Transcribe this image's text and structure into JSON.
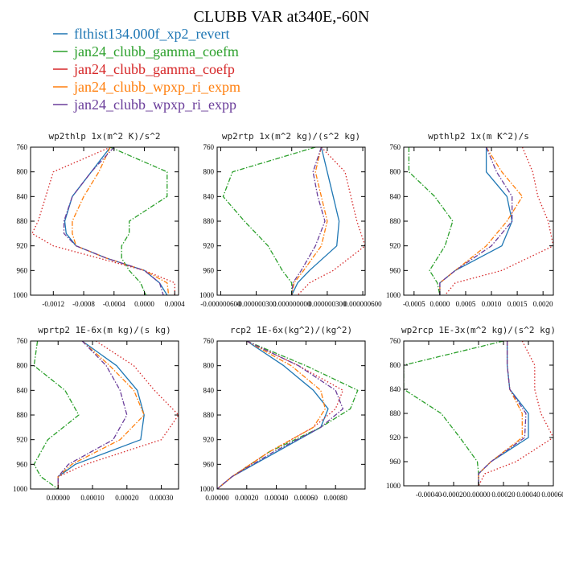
{
  "figure": {
    "title": "CLUBB VAR at340E,-60N"
  },
  "legend": [
    {
      "name": "flthist134.000f_xp2_revert",
      "color": "#1f77b4",
      "dash": "solid"
    },
    {
      "name": "jan24_clubb_gamma_coefm",
      "color": "#2ca02c",
      "dash": "dashdot"
    },
    {
      "name": "jan24_clubb_gamma_coefp",
      "color": "#d62728",
      "dash": "dot"
    },
    {
      "name": "jan24_clubb_wpxp_ri_expm",
      "color": "#ff7f0e",
      "dash": "dashdot"
    },
    {
      "name": "jan24_clubb_wpxp_ri_expp",
      "color": "#6a3d9a",
      "dash": "dashdot"
    }
  ],
  "chart_data": [
    {
      "type": "line",
      "title": "wp2thlp  1x(m^2 K)/s^2",
      "xlim": [
        -0.0015,
        0.00045
      ],
      "ylim": [
        760,
        1000
      ],
      "yticks": [
        760,
        800,
        840,
        880,
        920,
        960,
        1000
      ],
      "xticks": [
        "-0.0012",
        "-0.0008",
        "-0.0004",
        "0.0000",
        "0.0004"
      ],
      "xtick_values": [
        -0.0012,
        -0.0008,
        -0.0004,
        0.0,
        0.0004
      ],
      "y": [
        760,
        800,
        840,
        880,
        900,
        920,
        940,
        960,
        980,
        1000
      ],
      "series": [
        {
          "values": [
            -0.00045,
            -0.0007,
            -0.00095,
            -0.00105,
            -0.00103,
            -0.0009,
            -0.0005,
            0.0,
            0.0002,
            0.0003
          ]
        },
        {
          "values": [
            -0.00045,
            0.0003,
            0.0003,
            -0.0002,
            -0.0002,
            -0.0003,
            -0.0003,
            -0.0002,
            -5e-05,
            2e-05
          ]
        },
        {
          "values": [
            -0.00045,
            -0.0012,
            -0.0013,
            -0.0014,
            -0.00148,
            -0.0012,
            -0.0006,
            0.0,
            0.0004,
            0.0004
          ]
        },
        {
          "values": [
            -0.00045,
            -0.0006,
            -0.0008,
            -0.00095,
            -0.00095,
            -0.0009,
            -0.0005,
            0.0,
            0.0003,
            0.00032
          ]
        },
        {
          "values": [
            -0.0004,
            -0.0007,
            -0.00095,
            -0.00106,
            -0.00106,
            -0.0009,
            -0.0005,
            0.0,
            0.0002,
            0.00025
          ]
        }
      ]
    },
    {
      "type": "line",
      "title": "wp2rtp  1x(m^2 kg)/(s^2 kg)",
      "xlim": [
        -6.3e-07,
        6.2e-07
      ],
      "ylim": [
        760,
        1000
      ],
      "yticks": [
        760,
        800,
        840,
        880,
        920,
        960,
        1000
      ],
      "xticks": [
        "-0.000000600",
        "-0.000000300",
        "0.000000000",
        "0.000000300",
        "0.000000600"
      ],
      "xtick_values": [
        -6e-07,
        -3e-07,
        0.0,
        3e-07,
        6e-07
      ],
      "y": [
        760,
        800,
        840,
        880,
        920,
        960,
        980,
        1000
      ],
      "series": [
        {
          "values": [
            2.5e-07,
            3e-07,
            3.5e-07,
            4e-07,
            3.8e-07,
            1.5e-07,
            5e-08,
            0.0
          ]
        },
        {
          "values": [
            2e-07,
            -5e-07,
            -5.8e-07,
            -4e-07,
            -2e-07,
            -8e-08,
            0.0,
            0.0
          ]
        },
        {
          "values": [
            2.5e-07,
            4.5e-07,
            5e-07,
            5.5e-07,
            6.2e-07,
            3.5e-07,
            1.5e-07,
            5e-08
          ]
        },
        {
          "values": [
            2.5e-07,
            2e-07,
            2.5e-07,
            3e-07,
            2.5e-07,
            1e-07,
            2e-08,
            0.0
          ]
        },
        {
          "values": [
            2.5e-07,
            1.8e-07,
            2.2e-07,
            2.8e-07,
            2e-07,
            8e-08,
            1e-08,
            0.0
          ]
        }
      ]
    },
    {
      "type": "line",
      "title": "wpthlp2  1x(m K^2)/s",
      "xlim": [
        -0.0007,
        0.0022
      ],
      "ylim": [
        760,
        1000
      ],
      "yticks": [
        760,
        800,
        840,
        880,
        920,
        960,
        1000
      ],
      "xticks": [
        "-0.0005",
        "0.0000",
        "0.0005",
        "0.0010",
        "0.0015",
        "0.0020"
      ],
      "xtick_values": [
        -0.0005,
        0.0,
        0.0005,
        0.001,
        0.0015,
        0.002
      ],
      "y": [
        760,
        800,
        840,
        880,
        920,
        960,
        980,
        1000
      ],
      "series": [
        {
          "values": [
            0.0009,
            0.0009,
            0.0013,
            0.0014,
            0.0012,
            0.0003,
            0.0,
            0.0
          ]
        },
        {
          "values": [
            -0.0006,
            -0.0006,
            -0.0001,
            0.00025,
            0.0001,
            -0.0002,
            -5e-05,
            0.0
          ]
        },
        {
          "values": [
            0.0016,
            0.0018,
            0.0019,
            0.0021,
            0.0022,
            0.0012,
            0.0003,
            0.0001
          ]
        },
        {
          "values": [
            0.0009,
            0.0012,
            0.0016,
            0.0013,
            0.0009,
            0.0003,
            0.0,
            0.0
          ]
        },
        {
          "values": [
            0.0009,
            0.0011,
            0.0014,
            0.0014,
            0.001,
            0.0003,
            0.0,
            0.0
          ]
        }
      ]
    },
    {
      "type": "line",
      "title": "wprtp2  1E-6x(m kg)/(s kg)",
      "xlim": [
        -8e-05,
        0.00035
      ],
      "ylim": [
        760,
        1000
      ],
      "yticks": [
        760,
        800,
        840,
        880,
        920,
        960,
        1000
      ],
      "xticks": [
        "0.00000",
        "0.00010",
        "0.00020",
        "0.00030"
      ],
      "xtick_values": [
        0.0,
        0.0001,
        0.0002,
        0.0003
      ],
      "y": [
        760,
        800,
        840,
        880,
        920,
        960,
        980,
        1000
      ],
      "series": [
        {
          "values": [
            7e-05,
            0.00017,
            0.00023,
            0.00025,
            0.00024,
            5e-05,
            0.0,
            0.0
          ]
        },
        {
          "values": [
            -6e-05,
            -7e-05,
            2e-05,
            6e-05,
            -3e-05,
            -7e-05,
            -5e-05,
            0.0
          ]
        },
        {
          "values": [
            0.00011,
            0.00022,
            0.00028,
            0.00035,
            0.0003,
            8e-05,
            0.0,
            0.0
          ]
        },
        {
          "values": [
            7e-05,
            0.00015,
            0.00022,
            0.00025,
            0.00018,
            4e-05,
            0.0,
            0.0
          ]
        },
        {
          "values": [
            7e-05,
            0.00014,
            0.00018,
            0.0002,
            0.00016,
            3e-05,
            0.0,
            0.0
          ]
        }
      ]
    },
    {
      "type": "line",
      "title": "rcp2  1E-6x(kg^2)/(kg^2)",
      "xlim": [
        0.0,
        0.001
      ],
      "ylim": [
        760,
        1000
      ],
      "yticks": [
        760,
        800,
        840,
        880,
        920,
        960,
        1000
      ],
      "xticks": [
        "0.00000",
        "0.00020",
        "0.00040",
        "0.00060",
        "0.00080"
      ],
      "xtick_values": [
        0.0,
        0.0002,
        0.0004,
        0.0006,
        0.0008
      ],
      "y": [
        760,
        800,
        840,
        870,
        900,
        940,
        980,
        1000
      ],
      "series": [
        {
          "values": [
            0.0002,
            0.00045,
            0.00065,
            0.00075,
            0.0007,
            0.0004,
            0.0001,
            0.0
          ]
        },
        {
          "values": [
            0.0002,
            0.0006,
            0.00095,
            0.0009,
            0.0007,
            0.00035,
            0.0001,
            0.0
          ]
        },
        {
          "values": [
            0.0002,
            0.00055,
            0.00085,
            0.0008,
            0.00065,
            0.00035,
            0.0001,
            0.0
          ]
        },
        {
          "values": [
            0.0002,
            0.0005,
            0.0007,
            0.00073,
            0.00065,
            0.00035,
            0.0001,
            0.0
          ]
        },
        {
          "values": [
            0.0002,
            0.00055,
            0.0008,
            0.00085,
            0.0007,
            0.00038,
            0.0001,
            0.0
          ]
        }
      ]
    },
    {
      "type": "line",
      "title": "wp2rcp  1E-3x(m^2 kg)/(s^2 kg)",
      "xlim": [
        -0.0006,
        0.0006
      ],
      "ylim": [
        760,
        1000
      ],
      "yticks": [
        760,
        800,
        840,
        880,
        920,
        960,
        1000
      ],
      "xticks": [
        "-0.00040",
        "-0.00020",
        "0.00000",
        "0.00020",
        "0.00040",
        "0.00060"
      ],
      "xtick_values": [
        -0.0004,
        -0.0002,
        0.0,
        0.0002,
        0.0004,
        0.0006
      ],
      "y": [
        760,
        800,
        840,
        880,
        920,
        960,
        980,
        1000
      ],
      "series": [
        {
          "values": [
            0.00023,
            0.00023,
            0.00025,
            0.0004,
            0.0004,
            0.0001,
            0.0,
            0.0
          ]
        },
        {
          "values": [
            0.0002,
            -0.0006,
            -0.0006,
            -0.0003,
            -0.00015,
            -1e-05,
            0.0,
            0.0
          ]
        },
        {
          "values": [
            0.00035,
            0.00045,
            0.00045,
            0.0005,
            0.0006,
            0.0003,
            5e-05,
            0.0
          ]
        },
        {
          "values": [
            0.00023,
            0.00023,
            0.00025,
            0.00035,
            0.00035,
            0.0001,
            0.0,
            0.0
          ]
        },
        {
          "values": [
            0.00023,
            0.00023,
            0.00025,
            0.00038,
            0.00037,
            0.0001,
            0.0,
            0.0
          ]
        }
      ]
    }
  ]
}
